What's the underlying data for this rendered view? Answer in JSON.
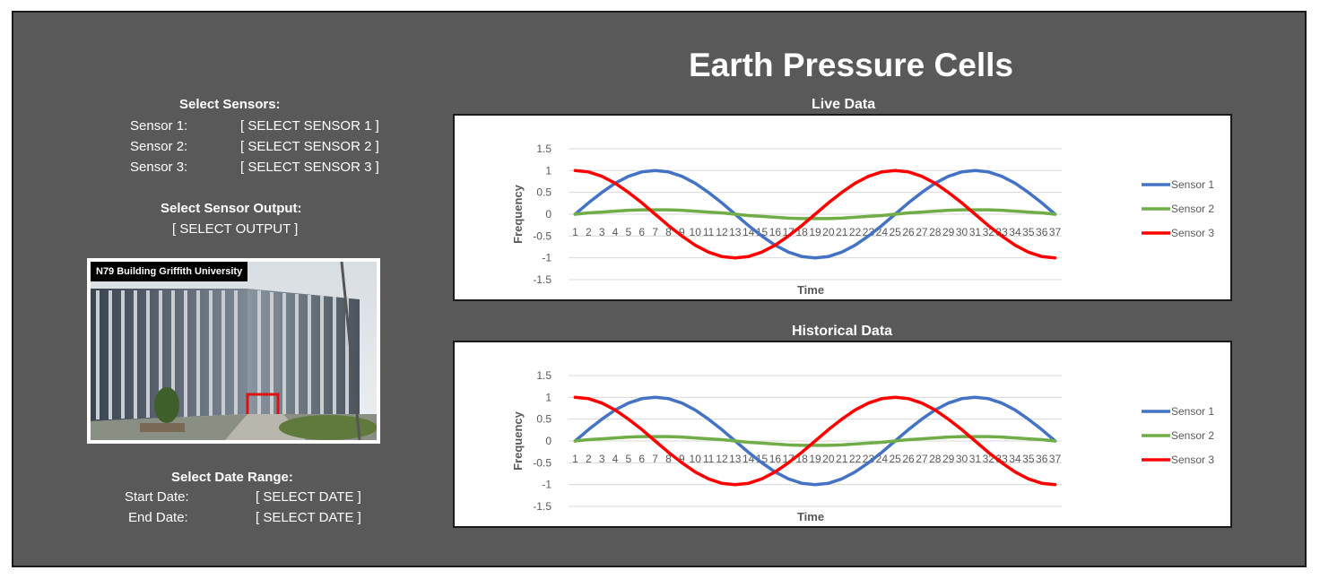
{
  "page": {
    "title": "Earth Pressure Cells"
  },
  "controls": {
    "sensors_heading": "Select Sensors:",
    "sensor_rows": [
      {
        "label": "Sensor 1:",
        "value": "[ SELECT SENSOR 1 ]"
      },
      {
        "label": "Sensor 2:",
        "value": "[ SELECT SENSOR 2 ]"
      },
      {
        "label": "Sensor 3:",
        "value": "[ SELECT SENSOR 3 ]"
      }
    ],
    "output_heading": "Select Sensor Output:",
    "output_value": "[ SELECT OUTPUT ]",
    "photo_caption": "N79 Building Griffith University",
    "date_heading": "Select Date Range:",
    "start_label": "Start Date:",
    "start_value": "[ SELECT DATE ]",
    "end_label": "End Date:",
    "end_value": "[ SELECT DATE ]"
  },
  "chart_data": [
    {
      "type": "line",
      "title": "Live Data",
      "xlabel": "Time",
      "ylabel": "Frequency",
      "ylim": [
        -1.5,
        1.5
      ],
      "yticks": [
        1.5,
        1,
        0.5,
        0,
        -0.5,
        -1,
        -1.5
      ],
      "grid": true,
      "legend": "right",
      "x": [
        1,
        2,
        3,
        4,
        5,
        6,
        7,
        8,
        9,
        10,
        11,
        12,
        13,
        14,
        15,
        16,
        17,
        18,
        19,
        20,
        21,
        22,
        23,
        24,
        25,
        26,
        27,
        28,
        29,
        30,
        31,
        32,
        33,
        34,
        35,
        36,
        37
      ],
      "series": [
        {
          "name": "Sensor 1",
          "color": "#4472c4",
          "values": [
            0,
            0.26,
            0.5,
            0.71,
            0.87,
            0.97,
            1,
            0.97,
            0.87,
            0.71,
            0.5,
            0.26,
            0,
            -0.26,
            -0.5,
            -0.71,
            -0.87,
            -0.97,
            -1,
            -0.97,
            -0.87,
            -0.71,
            -0.5,
            -0.26,
            0,
            0.26,
            0.5,
            0.71,
            0.87,
            0.97,
            1,
            0.97,
            0.87,
            0.71,
            0.5,
            0.26,
            0
          ]
        },
        {
          "name": "Sensor 2",
          "color": "#70ad47",
          "values": [
            0,
            0.03,
            0.05,
            0.07,
            0.09,
            0.1,
            0.1,
            0.1,
            0.09,
            0.07,
            0.05,
            0.03,
            0,
            -0.03,
            -0.05,
            -0.07,
            -0.09,
            -0.1,
            -0.1,
            -0.1,
            -0.09,
            -0.07,
            -0.05,
            -0.03,
            0,
            0.03,
            0.05,
            0.07,
            0.09,
            0.1,
            0.1,
            0.1,
            0.09,
            0.07,
            0.05,
            0.03,
            0
          ]
        },
        {
          "name": "Sensor 3",
          "color": "#ff0000",
          "values": [
            1,
            0.97,
            0.87,
            0.71,
            0.5,
            0.26,
            0,
            -0.26,
            -0.5,
            -0.71,
            -0.87,
            -0.97,
            -1,
            -0.97,
            -0.87,
            -0.71,
            -0.5,
            -0.26,
            0,
            0.26,
            0.5,
            0.71,
            0.87,
            0.97,
            1,
            0.97,
            0.87,
            0.71,
            0.5,
            0.26,
            0,
            -0.26,
            -0.5,
            -0.71,
            -0.87,
            -0.97,
            -1
          ]
        }
      ]
    },
    {
      "type": "line",
      "title": "Historical Data",
      "xlabel": "Time",
      "ylabel": "Frequency",
      "ylim": [
        -1.5,
        1.5
      ],
      "yticks": [
        1.5,
        1,
        0.5,
        0,
        -0.5,
        -1,
        -1.5
      ],
      "grid": true,
      "legend": "right",
      "x": [
        1,
        2,
        3,
        4,
        5,
        6,
        7,
        8,
        9,
        10,
        11,
        12,
        13,
        14,
        15,
        16,
        17,
        18,
        19,
        20,
        21,
        22,
        23,
        24,
        25,
        26,
        27,
        28,
        29,
        30,
        31,
        32,
        33,
        34,
        35,
        36,
        37
      ],
      "series": [
        {
          "name": "Sensor 1",
          "color": "#4472c4",
          "values": [
            0,
            0.26,
            0.5,
            0.71,
            0.87,
            0.97,
            1,
            0.97,
            0.87,
            0.71,
            0.5,
            0.26,
            0,
            -0.26,
            -0.5,
            -0.71,
            -0.87,
            -0.97,
            -1,
            -0.97,
            -0.87,
            -0.71,
            -0.5,
            -0.26,
            0,
            0.26,
            0.5,
            0.71,
            0.87,
            0.97,
            1,
            0.97,
            0.87,
            0.71,
            0.5,
            0.26,
            0
          ]
        },
        {
          "name": "Sensor 2",
          "color": "#70ad47",
          "values": [
            0,
            0.03,
            0.05,
            0.07,
            0.09,
            0.1,
            0.1,
            0.1,
            0.09,
            0.07,
            0.05,
            0.03,
            0,
            -0.03,
            -0.05,
            -0.07,
            -0.09,
            -0.1,
            -0.1,
            -0.1,
            -0.09,
            -0.07,
            -0.05,
            -0.03,
            0,
            0.03,
            0.05,
            0.07,
            0.09,
            0.1,
            0.1,
            0.1,
            0.09,
            0.07,
            0.05,
            0.03,
            0
          ]
        },
        {
          "name": "Sensor 3",
          "color": "#ff0000",
          "values": [
            1,
            0.97,
            0.87,
            0.71,
            0.5,
            0.26,
            0,
            -0.26,
            -0.5,
            -0.71,
            -0.87,
            -0.97,
            -1,
            -0.97,
            -0.87,
            -0.71,
            -0.5,
            -0.26,
            0,
            0.26,
            0.5,
            0.71,
            0.87,
            0.97,
            1,
            0.97,
            0.87,
            0.71,
            0.5,
            0.26,
            0,
            -0.26,
            -0.5,
            -0.71,
            -0.87,
            -0.97,
            -1
          ]
        }
      ]
    }
  ]
}
